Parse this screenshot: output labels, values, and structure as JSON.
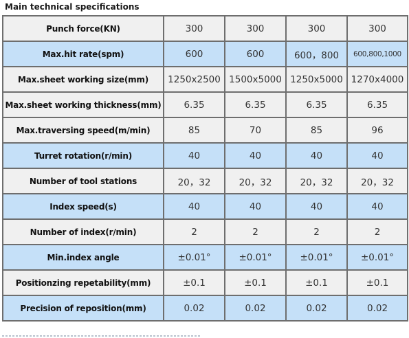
{
  "title": "Main technical specifications",
  "rows": [
    {
      "label": "Punch force(KN)",
      "shade": "plain",
      "values": [
        "300",
        "300",
        "300",
        "300"
      ]
    },
    {
      "label": "Max.hit rate(spm)",
      "shade": "shaded",
      "values": [
        "600",
        "600",
        "600，800",
        "600,800,1000"
      ]
    },
    {
      "label": "Max.sheet working size(mm)",
      "shade": "plain",
      "values": [
        "1250x2500",
        "1500x5000",
        "1250x5000",
        "1270x4000"
      ]
    },
    {
      "label": "Max.sheet working thickness(mm)",
      "shade": "plain",
      "values": [
        "6.35",
        "6.35",
        "6.35",
        "6.35"
      ]
    },
    {
      "label": "Max.traversing speed(m/min)",
      "shade": "plain",
      "values": [
        "85",
        "70",
        "85",
        "96"
      ]
    },
    {
      "label": "Turret rotation(r/min)",
      "shade": "shaded",
      "values": [
        "40",
        "40",
        "40",
        "40"
      ]
    },
    {
      "label": "Number of tool stations",
      "shade": "plain",
      "values": [
        "20，32",
        "20，32",
        "20，32",
        "20，32"
      ]
    },
    {
      "label": "Index speed(s)",
      "shade": "shaded",
      "values": [
        "40",
        "40",
        "40",
        "40"
      ]
    },
    {
      "label": "Number of index(r/min)",
      "shade": "plain",
      "values": [
        "2",
        "2",
        "2",
        "2"
      ]
    },
    {
      "label": "Min.index angle",
      "shade": "shaded",
      "values": [
        "±0.01°",
        "±0.01°",
        "±0.01°",
        "±0.01°"
      ]
    },
    {
      "label": "Positionzing repetability(mm)",
      "shade": "plain",
      "values": [
        "±0.1",
        "±0.1",
        "±0.1",
        "±0.1"
      ]
    },
    {
      "label": "Precision of reposition(mm)",
      "shade": "shaded",
      "values": [
        "0.02",
        "0.02",
        "0.02",
        "0.02"
      ]
    }
  ]
}
